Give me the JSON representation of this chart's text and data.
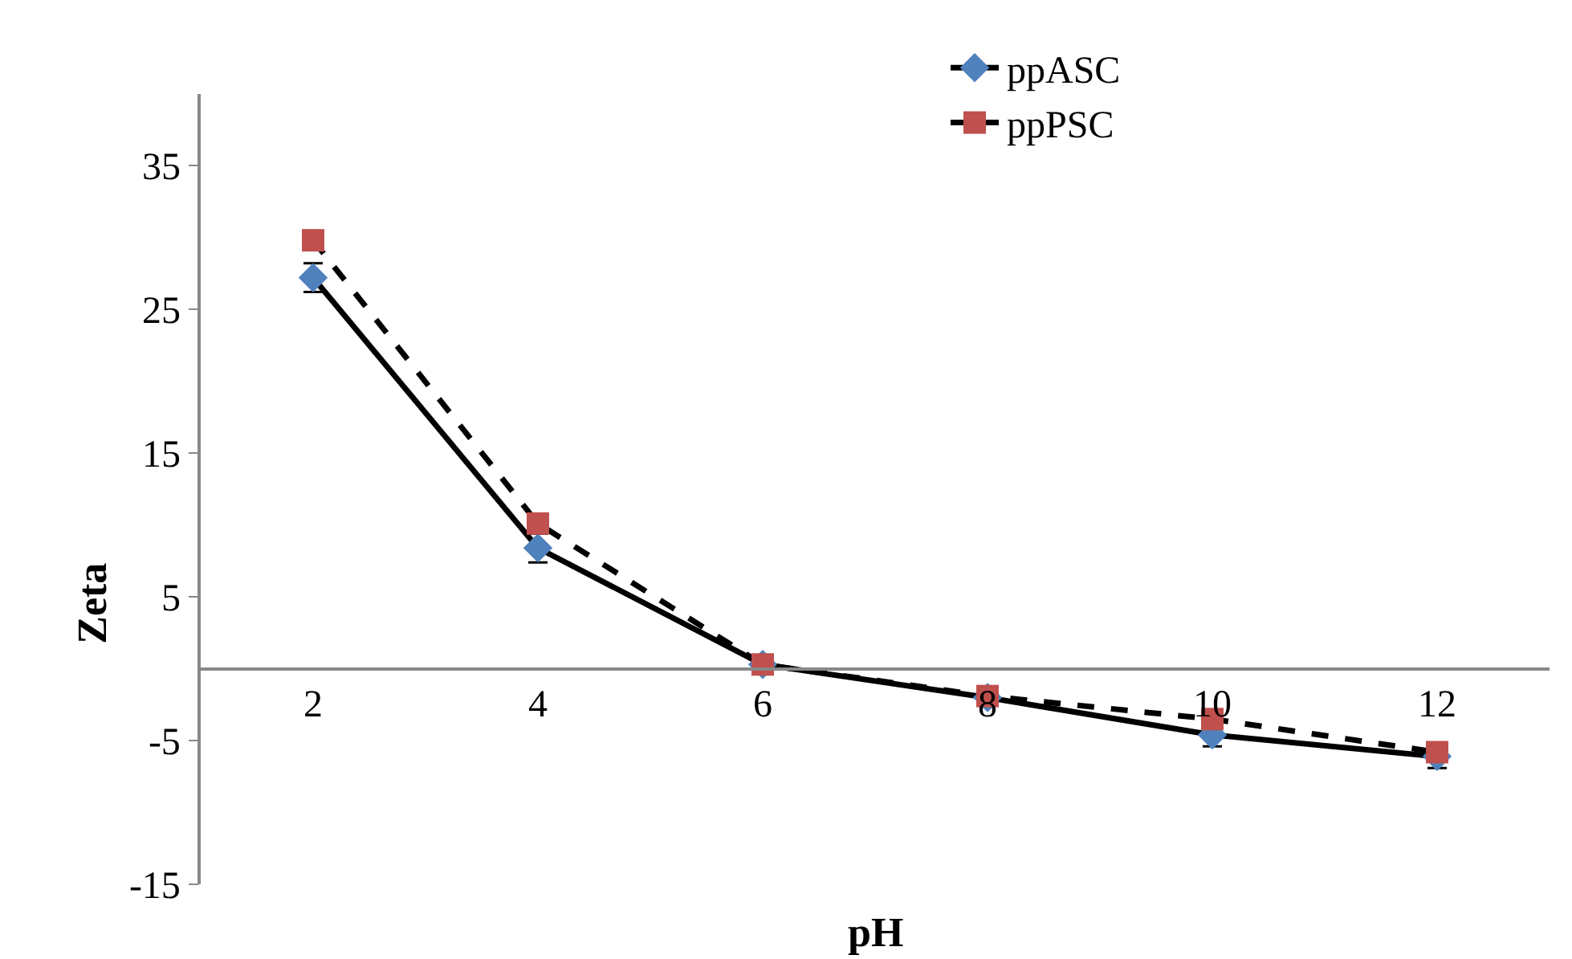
{
  "chart_data": {
    "type": "line",
    "xlabel": "pH",
    "ylabel": "Zeta",
    "categories": [
      "2",
      "4",
      "6",
      "8",
      "10",
      "12"
    ],
    "series": [
      {
        "name": "ppASC",
        "color": "#4f81bd",
        "marker": "diamond",
        "line_style": "solid",
        "values": [
          27.2,
          8.4,
          0.3,
          -2.0,
          -4.6,
          -6.1
        ],
        "errors": [
          1,
          1,
          null,
          null,
          0.8,
          0.8
        ]
      },
      {
        "name": "ppPSC",
        "color": "#c0504d",
        "marker": "square",
        "line_style": "dashed",
        "values": [
          29.8,
          10.1,
          0.3,
          -1.9,
          -3.5,
          -5.8
        ]
      }
    ],
    "ylim": [
      -15,
      40
    ],
    "yticks": [
      -15,
      -5,
      5,
      15,
      25,
      35
    ],
    "legend": "top right"
  }
}
